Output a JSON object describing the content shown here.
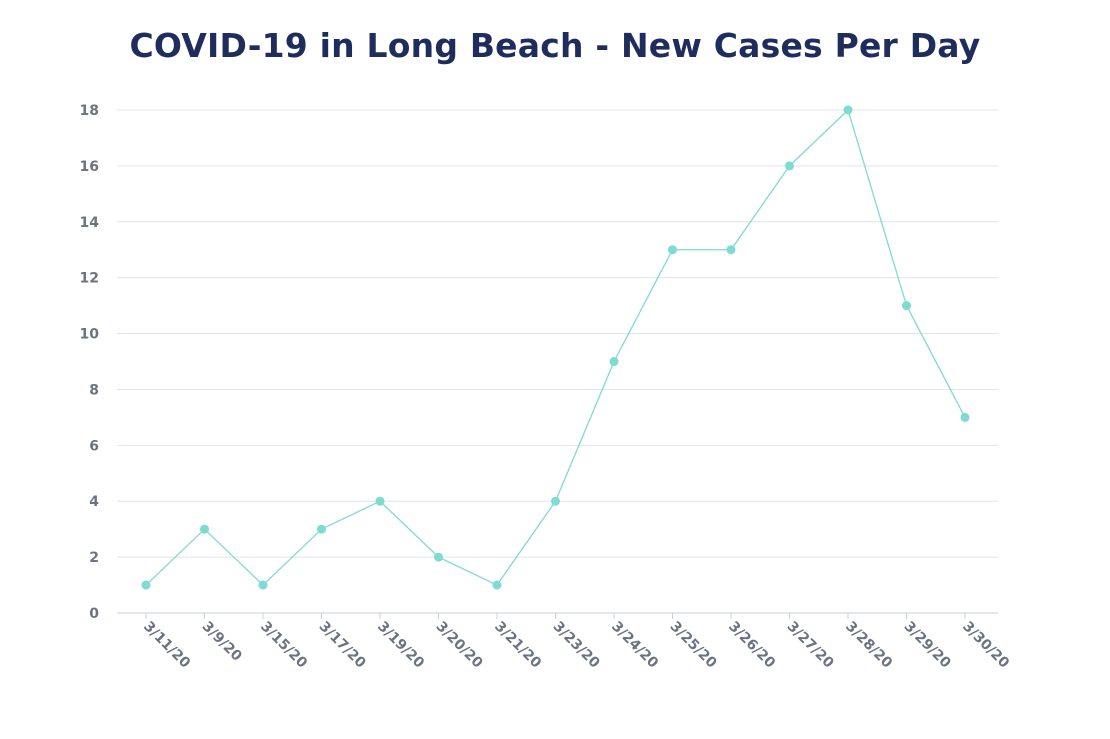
{
  "chart_data": {
    "type": "line",
    "title": "COVID-19 in Long Beach - New Cases Per Day",
    "xlabel": "",
    "ylabel": "",
    "categories": [
      "3/11/20",
      "3/9/20",
      "3/15/20",
      "3/17/20",
      "3/19/20",
      "3/20/20",
      "3/21/20",
      "3/23/20",
      "3/24/20",
      "3/25/20",
      "3/26/20",
      "3/27/20",
      "3/28/20",
      "3/29/20",
      "3/30/20"
    ],
    "series": [
      {
        "name": "New Cases",
        "values": [
          1,
          3,
          1,
          3,
          4,
          2,
          1,
          4,
          9,
          13,
          13,
          16,
          18,
          11,
          7
        ]
      }
    ],
    "ylim": [
      0,
      18
    ],
    "yticks": [
      0,
      2,
      4,
      6,
      8,
      10,
      12,
      14,
      16,
      18
    ],
    "grid": true,
    "colors": {
      "series": "#7fdad2",
      "grid": "#dfe5ee",
      "title": "#1f2d5c",
      "tick_label": "#6b7380"
    }
  }
}
